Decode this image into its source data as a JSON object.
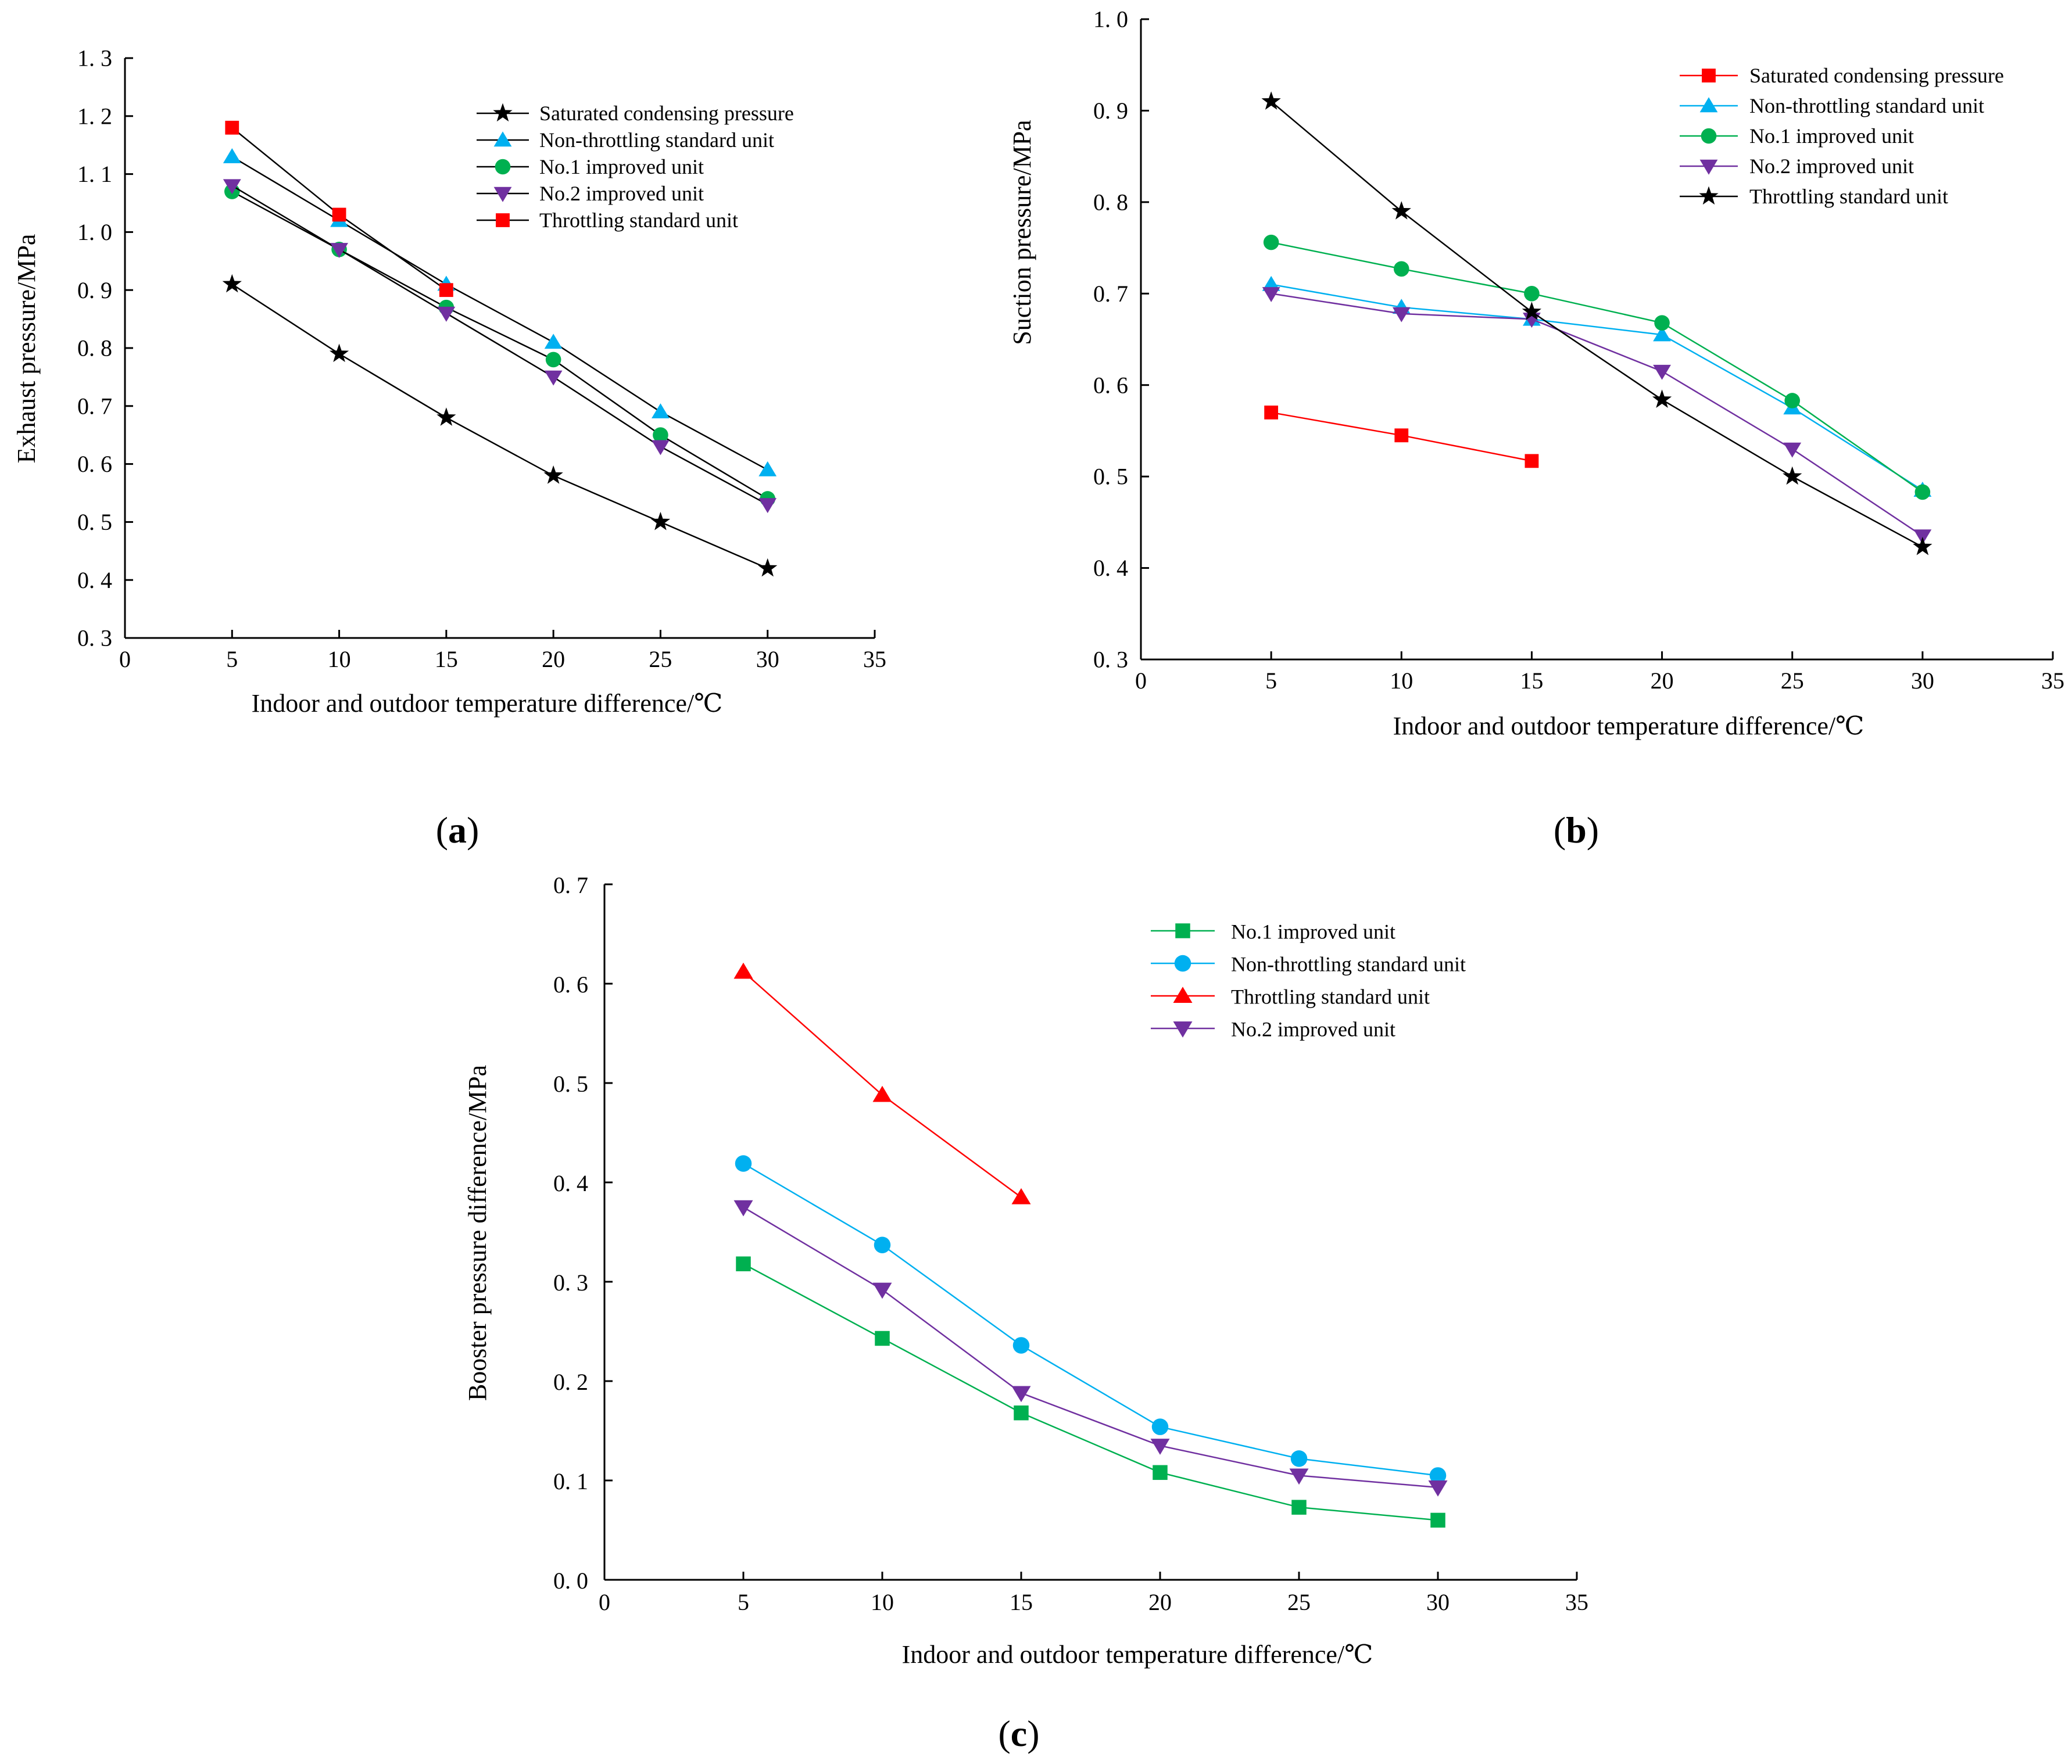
{
  "chart_data": [
    {
      "panel_label": "(a)",
      "panel_letter": "a",
      "type": "line",
      "xlabel": "Indoor and outdoor temperature difference/℃",
      "ylabel": "Exhaust pressure/MPa",
      "xlim": [
        0,
        35
      ],
      "ylim": [
        0.3,
        1.3
      ],
      "xticks": [
        0,
        5,
        10,
        15,
        20,
        25,
        30,
        35
      ],
      "yticks": [
        0.3,
        0.4,
        0.5,
        0.6,
        0.7,
        0.8,
        0.9,
        1.0,
        1.1,
        1.2,
        1.3
      ],
      "ytick_labels": [
        "0. 3",
        "0. 4",
        "0. 5",
        "0. 6",
        "0. 7",
        "0. 8",
        "0. 9",
        "1. 0",
        "1. 1",
        "1. 2",
        "1. 3"
      ],
      "legend_position": "top-right",
      "x": [
        5,
        10,
        15,
        20,
        25,
        30
      ],
      "series": [
        {
          "name": "Saturated condensing pressure",
          "marker": "star",
          "color": "#000000",
          "marker_color": "#000000",
          "line_color": "#000000",
          "values": [
            0.91,
            0.79,
            0.68,
            0.58,
            0.5,
            0.42
          ]
        },
        {
          "name": "Non-throttling standard unit",
          "marker": "triangle-up",
          "color": "#00b0f0",
          "marker_color": "#00b0f0",
          "line_color": "#000000",
          "values": [
            1.13,
            1.02,
            0.91,
            0.81,
            0.69,
            0.59
          ]
        },
        {
          "name": "No.1 improved unit",
          "marker": "circle",
          "color": "#00b050",
          "marker_color": "#00b050",
          "line_color": "#000000",
          "values": [
            1.07,
            0.97,
            0.87,
            0.78,
            0.65,
            0.54
          ]
        },
        {
          "name": "No.2 improved unit",
          "marker": "triangle-down",
          "color": "#7030a0",
          "marker_color": "#7030a0",
          "line_color": "#000000",
          "values": [
            1.08,
            0.97,
            0.86,
            0.75,
            0.63,
            0.53
          ]
        },
        {
          "name": "Throttling standard unit",
          "marker": "square",
          "color": "#ff0000",
          "marker_color": "#ff0000",
          "line_color": "#000000",
          "values": [
            1.18,
            1.03,
            0.9,
            null,
            null,
            null
          ]
        }
      ]
    },
    {
      "panel_label": "(b)",
      "panel_letter": "b",
      "type": "line",
      "xlabel": "Indoor and outdoor temperature difference/℃",
      "ylabel": "Suction pressure/MPa",
      "xlim": [
        0,
        35
      ],
      "ylim": [
        0.3,
        1.0
      ],
      "xticks": [
        0,
        5,
        10,
        15,
        20,
        25,
        30,
        35
      ],
      "yticks": [
        0.3,
        0.4,
        0.5,
        0.6,
        0.7,
        0.8,
        0.9,
        1.0
      ],
      "ytick_labels": [
        "0. 3",
        "0. 4",
        "0. 5",
        "0. 6",
        "0. 7",
        "0. 8",
        "0. 9",
        "1. 0"
      ],
      "legend_position": "top-right",
      "x": [
        5,
        10,
        15,
        20,
        25,
        30
      ],
      "series": [
        {
          "name": "Saturated condensing pressure",
          "marker": "square",
          "color": "#ff0000",
          "marker_color": "#ff0000",
          "line_color": "#ff0000",
          "values": [
            0.57,
            0.545,
            0.517,
            null,
            null,
            null
          ]
        },
        {
          "name": "Non-throttling standard unit",
          "marker": "triangle-up",
          "color": "#00b0f0",
          "marker_color": "#00b0f0",
          "line_color": "#00b0f0",
          "values": [
            0.71,
            0.685,
            0.672,
            0.655,
            0.575,
            0.485
          ]
        },
        {
          "name": "No.1 improved unit",
          "marker": "circle",
          "color": "#00b050",
          "marker_color": "#00b050",
          "line_color": "#00b050",
          "values": [
            0.756,
            0.727,
            0.7,
            0.668,
            0.583,
            0.483
          ]
        },
        {
          "name": "No.2 improved unit",
          "marker": "triangle-down",
          "color": "#7030a0",
          "marker_color": "#7030a0",
          "line_color": "#7030a0",
          "values": [
            0.7,
            0.678,
            0.672,
            0.615,
            0.53,
            0.435
          ]
        },
        {
          "name": "Throttling standard unit",
          "marker": "star",
          "color": "#000000",
          "marker_color": "#000000",
          "line_color": "#000000",
          "values": [
            0.91,
            0.79,
            0.68,
            0.584,
            0.5,
            0.423
          ]
        }
      ]
    },
    {
      "panel_label": "(c)",
      "panel_letter": "c",
      "type": "line",
      "xlabel": "Indoor and outdoor temperature difference/℃",
      "ylabel": "Booster pressure difference/MPa",
      "xlim": [
        0,
        35
      ],
      "ylim": [
        0.0,
        0.7
      ],
      "xticks": [
        0,
        5,
        10,
        15,
        20,
        25,
        30,
        35
      ],
      "yticks": [
        0.0,
        0.1,
        0.2,
        0.3,
        0.4,
        0.5,
        0.6,
        0.7
      ],
      "ytick_labels": [
        "0. 0",
        "0. 1",
        "0. 2",
        "0. 3",
        "0. 4",
        "0. 5",
        "0. 6",
        "0. 7"
      ],
      "legend_position": "top-right",
      "x": [
        5,
        10,
        15,
        20,
        25,
        30
      ],
      "series": [
        {
          "name": "No.1 improved unit",
          "marker": "square",
          "color": "#00b050",
          "marker_color": "#00b050",
          "line_color": "#00b050",
          "values": [
            0.318,
            0.243,
            0.168,
            0.108,
            0.073,
            0.06
          ]
        },
        {
          "name": "Non-throttling standard unit",
          "marker": "circle",
          "color": "#00b0f0",
          "marker_color": "#00b0f0",
          "line_color": "#00b0f0",
          "values": [
            0.419,
            0.337,
            0.236,
            0.154,
            0.122,
            0.105
          ]
        },
        {
          "name": "Throttling standard unit",
          "marker": "triangle-up",
          "color": "#ff0000",
          "marker_color": "#ff0000",
          "line_color": "#ff0000",
          "values": [
            0.612,
            0.488,
            0.385,
            null,
            null,
            null
          ]
        },
        {
          "name": "No.2 improved unit",
          "marker": "triangle-down",
          "color": "#7030a0",
          "marker_color": "#7030a0",
          "line_color": "#7030a0",
          "values": [
            0.375,
            0.292,
            0.188,
            0.135,
            0.105,
            0.093
          ]
        }
      ]
    }
  ]
}
